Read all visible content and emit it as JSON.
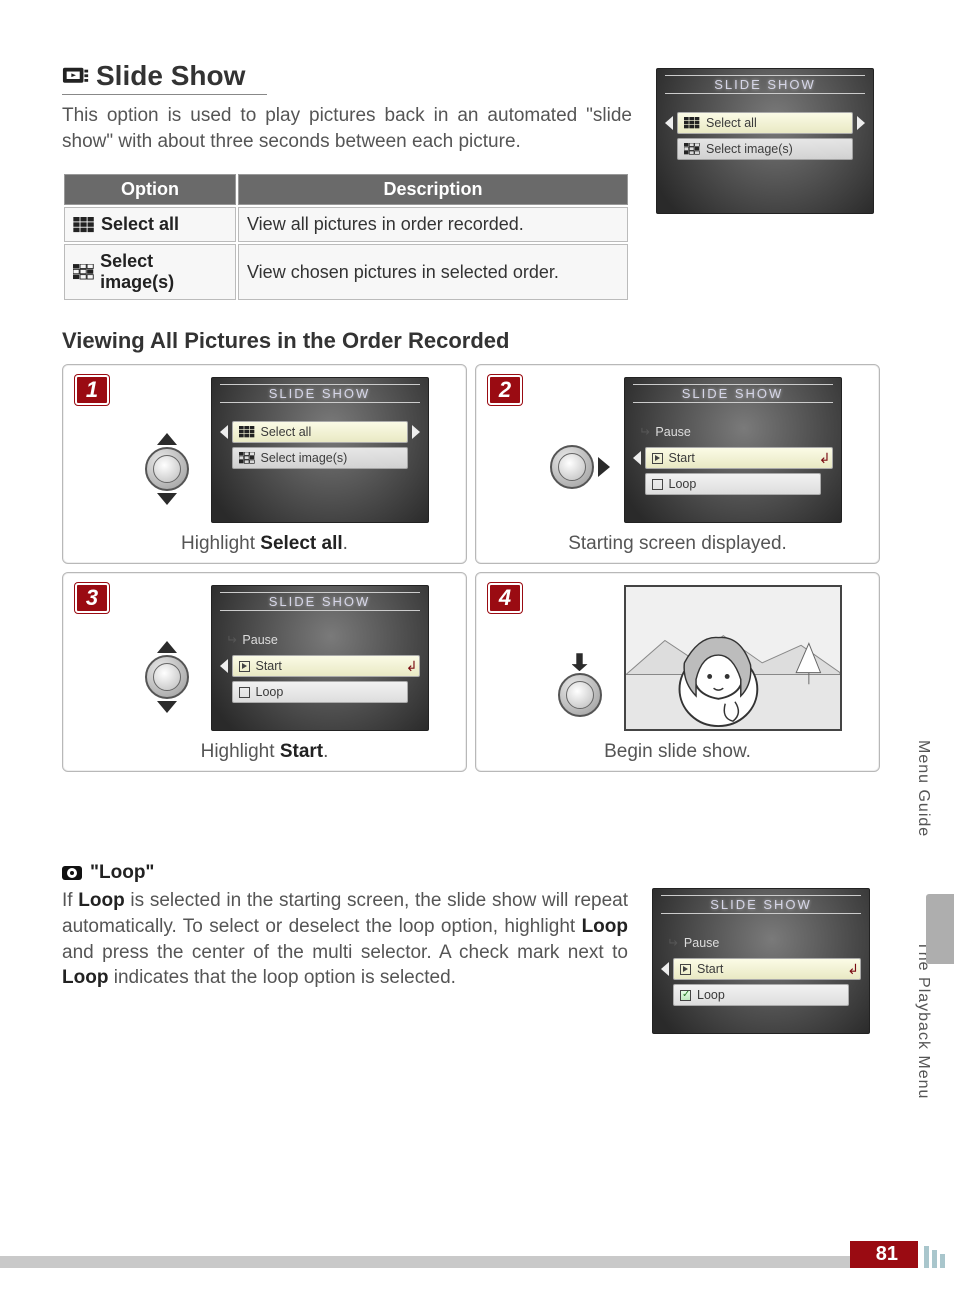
{
  "title": "Slide Show",
  "intro": "This option is used to play pictures back in an automated \"slide show\" with about three seconds between each picture.",
  "options_table": {
    "headers": [
      "Option",
      "Description"
    ],
    "rows": [
      {
        "icon": "grid-all",
        "label": "Select all",
        "desc": "View all pictures in order recorded."
      },
      {
        "icon": "grid-sel",
        "label": "Select image(s)",
        "desc": "View chosen pictures in selected order."
      }
    ]
  },
  "side_screen": {
    "title": "SLIDE SHOW",
    "items": [
      {
        "label": "Select all",
        "icon": "grid-all",
        "selected": true
      },
      {
        "label": "Select image(s)",
        "icon": "grid-sel",
        "selected": false
      }
    ]
  },
  "subheading": "Viewing All Pictures in the Order Recorded",
  "steps": [
    {
      "num": "1",
      "controller": "vertical",
      "screen": {
        "title": "SLIDE SHOW",
        "rows": [
          {
            "kind": "nav-sel",
            "icon": "grid-all",
            "label": "Select all"
          },
          {
            "kind": "plain-item",
            "icon": "grid-sel",
            "label": "Select image(s)"
          }
        ]
      },
      "caption_html": "Highlight <b>Select all</b>."
    },
    {
      "num": "2",
      "controller": "right",
      "screen": {
        "title": "SLIDE SHOW",
        "rows": [
          {
            "kind": "plain",
            "icon": "ret",
            "label": "Pause"
          },
          {
            "kind": "nav-sel",
            "icon": "play",
            "label": "Start",
            "ret_end": true
          },
          {
            "kind": "item",
            "icon": "box",
            "label": "Loop"
          }
        ]
      },
      "caption_html": "Starting screen displayed."
    },
    {
      "num": "3",
      "controller": "vertical",
      "screen": {
        "title": "SLIDE SHOW",
        "rows": [
          {
            "kind": "plain",
            "icon": "ret",
            "label": "Pause"
          },
          {
            "kind": "nav-sel",
            "icon": "play",
            "label": "Start",
            "ret_end": true
          },
          {
            "kind": "item",
            "icon": "box",
            "label": "Loop"
          }
        ]
      },
      "caption_html": "Highlight <b>Start</b>."
    },
    {
      "num": "4",
      "controller": "press",
      "photo": true,
      "caption_html": "Begin slide show."
    }
  ],
  "note": {
    "title": "\"Loop\"",
    "text_html": "If <b>Loop</b> is selected in the starting screen, the slide show will repeat automatically.  To select or deselect the loop option, highlight <b>Loop</b> and press the center of the multi selector.  A check mark next to <b>Loop</b> indicates that the loop option is selected.",
    "screen": {
      "title": "SLIDE SHOW",
      "rows": [
        {
          "kind": "plain",
          "icon": "ret",
          "label": "Pause"
        },
        {
          "kind": "nav-sel",
          "icon": "play",
          "label": "Start",
          "ret_end": true
        },
        {
          "kind": "item",
          "icon": "check",
          "label": "Loop"
        }
      ]
    }
  },
  "side_tabs": [
    "Menu Guide",
    "The Playback Menu"
  ],
  "page_number": "81",
  "colors": {
    "accent": "#9a0b12",
    "header_gray": "#6a6a6a",
    "text": "#555555",
    "screen_dark": "#2a2a2a",
    "screen_light": "#7a7a7a"
  }
}
